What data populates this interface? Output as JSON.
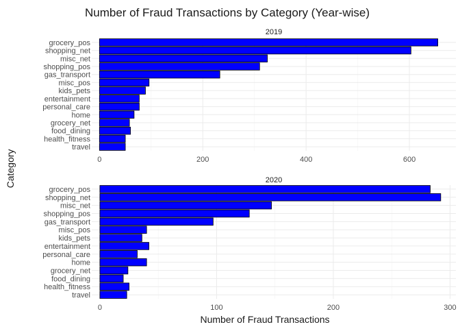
{
  "chart_data": {
    "type": "bar",
    "orientation": "horizontal",
    "title": "Number of Fraud Transactions by Category (Year-wise)",
    "xlabel": "Number of Fraud Transactions",
    "ylabel": "Category",
    "bar_color": "#0000ff",
    "bar_outline": "#000000",
    "grid": true,
    "legend": "none",
    "categories": [
      "grocery_pos",
      "shopping_net",
      "misc_net",
      "shopping_pos",
      "gas_transport",
      "misc_pos",
      "kids_pets",
      "entertainment",
      "personal_care",
      "home",
      "grocery_net",
      "food_dining",
      "health_fitness",
      "travel"
    ],
    "panels": [
      {
        "facet": "2019",
        "xlim": [
          -15,
          690
        ],
        "xticks": [
          0,
          200,
          400,
          600
        ],
        "values": [
          655,
          603,
          325,
          310,
          233,
          96,
          89,
          77,
          77,
          67,
          58,
          60,
          50,
          50
        ]
      },
      {
        "facet": "2020",
        "xlim": [
          -7,
          305
        ],
        "xticks": [
          0,
          100,
          200,
          300
        ],
        "values": [
          283,
          292,
          147,
          128,
          97,
          40,
          36,
          42,
          32,
          40,
          24,
          20,
          25,
          23
        ]
      }
    ]
  }
}
